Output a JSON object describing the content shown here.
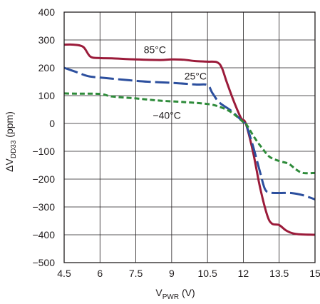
{
  "chart_data": {
    "type": "line",
    "x_axis": {
      "label_main": "V",
      "label_sub": "PWR",
      "label_suffix": " (V)",
      "range": [
        4.5,
        15
      ],
      "ticks": [
        4.5,
        6,
        7.5,
        9,
        10.5,
        12,
        13.5,
        15
      ],
      "tick_labels": [
        "4.5",
        "6",
        "7.5",
        "9",
        "10.5",
        "12",
        "13.5",
        "15"
      ]
    },
    "y_axis": {
      "label_prefix": "ΔV",
      "label_sub": "DD33",
      "label_suffix": " (ppm)",
      "range": [
        -500,
        400
      ],
      "ticks": [
        -500,
        -400,
        -300,
        -200,
        -100,
        0,
        100,
        200,
        300,
        400
      ],
      "tick_labels": [
        "−500",
        "−400",
        "−300",
        "−200",
        "−100",
        "0",
        "100",
        "200",
        "300",
        "400"
      ]
    },
    "grid": true,
    "series": [
      {
        "name": "85°C",
        "color": "#9b1b3a",
        "dash": "solid",
        "label_at": [
          8.3,
          265
        ],
        "points": [
          [
            4.5,
            283
          ],
          [
            4.9,
            283
          ],
          [
            5.3,
            275
          ],
          [
            5.6,
            240
          ],
          [
            6.0,
            235
          ],
          [
            6.5,
            234
          ],
          [
            7.5,
            230
          ],
          [
            8.5,
            228
          ],
          [
            9.0,
            230
          ],
          [
            9.5,
            229
          ],
          [
            10.0,
            224
          ],
          [
            10.5,
            222
          ],
          [
            10.9,
            220
          ],
          [
            11.1,
            200
          ],
          [
            11.3,
            150
          ],
          [
            11.6,
            80
          ],
          [
            11.9,
            20
          ],
          [
            12.1,
            0
          ],
          [
            12.4,
            -100
          ],
          [
            12.7,
            -230
          ],
          [
            13.0,
            -330
          ],
          [
            13.2,
            -360
          ],
          [
            13.5,
            -365
          ],
          [
            13.8,
            -385
          ],
          [
            14.2,
            -397
          ],
          [
            15.0,
            -400
          ]
        ]
      },
      {
        "name": "25°C",
        "color": "#2c4f9e",
        "dash": "long",
        "label_at": [
          10.0,
          170
        ],
        "points": [
          [
            4.5,
            200
          ],
          [
            5.0,
            185
          ],
          [
            5.5,
            170
          ],
          [
            6.0,
            165
          ],
          [
            7.0,
            157
          ],
          [
            8.0,
            150
          ],
          [
            9.0,
            146
          ],
          [
            10.0,
            140
          ],
          [
            10.5,
            138
          ],
          [
            10.7,
            110
          ],
          [
            11.0,
            75
          ],
          [
            11.5,
            45
          ],
          [
            12.0,
            5
          ],
          [
            12.1,
            0
          ],
          [
            12.4,
            -80
          ],
          [
            12.7,
            -175
          ],
          [
            12.9,
            -235
          ],
          [
            13.1,
            -248
          ],
          [
            13.5,
            -250
          ],
          [
            14.0,
            -250
          ],
          [
            14.5,
            -258
          ],
          [
            15.0,
            -273
          ]
        ]
      },
      {
        "name": "−40°C",
        "color": "#2e8b3a",
        "dash": "short",
        "label_at": [
          8.8,
          30
        ],
        "points": [
          [
            4.5,
            108
          ],
          [
            5.0,
            107
          ],
          [
            6.0,
            106
          ],
          [
            6.5,
            97
          ],
          [
            7.5,
            90
          ],
          [
            8.5,
            82
          ],
          [
            9.5,
            77
          ],
          [
            10.5,
            70
          ],
          [
            11.0,
            60
          ],
          [
            11.5,
            40
          ],
          [
            12.0,
            5
          ],
          [
            12.1,
            0
          ],
          [
            12.5,
            -55
          ],
          [
            12.8,
            -90
          ],
          [
            13.1,
            -120
          ],
          [
            13.5,
            -135
          ],
          [
            13.9,
            -145
          ],
          [
            14.2,
            -165
          ],
          [
            14.5,
            -178
          ],
          [
            15.0,
            -178
          ]
        ]
      }
    ]
  }
}
